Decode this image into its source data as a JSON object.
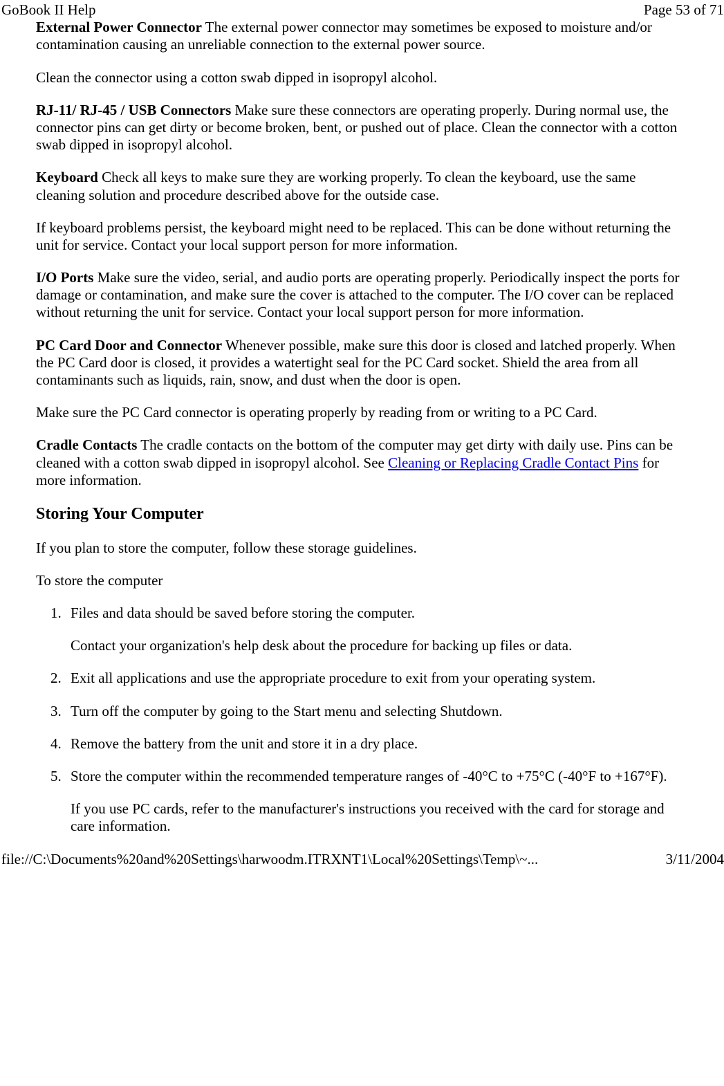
{
  "header": {
    "title": "GoBook II Help",
    "page_indicator": "Page 53 of 71"
  },
  "sections": {
    "external_power": {
      "lead": "External Power Connector",
      "body": "   The external power connector may sometimes be exposed to moisture and/or contamination causing an unreliable connection to the external power source."
    },
    "external_power_clean": "Clean the connector using a cotton swab dipped in isopropyl alcohol.",
    "rj": {
      "lead": "RJ-11/ RJ-45 / USB Connectors",
      "body": "   Make sure these connectors are operating properly. During normal use, the connector pins can get dirty or become broken, bent, or pushed out of place. Clean the connector with a cotton swab dipped in isopropyl alcohol."
    },
    "keyboard": {
      "lead": "Keyboard",
      "body": "   Check all keys to make sure they are working properly. To clean the keyboard, use the same cleaning solution and procedure described above for the outside case."
    },
    "keyboard_persist": "If keyboard problems persist, the keyboard might need to be replaced. This can be done without returning the unit for service. Contact your local support person for more information.",
    "io_ports": {
      "lead": "I/O Ports",
      "body": "   Make sure the video, serial, and audio ports are operating properly. Periodically inspect the ports for damage or contamination, and make sure the cover is attached to the computer. The I/O cover can be replaced without returning the unit for service. Contact your local support person for more information."
    },
    "pc_card": {
      "lead": "PC Card Door and Connector",
      "body": "   Whenever possible, make sure this door is closed and latched properly. When the PC Card door is closed, it provides a watertight seal for the PC Card socket. Shield the area from all contaminants such as liquids, rain, snow, and dust when the door is open."
    },
    "pc_card_check": "Make sure the PC Card connector is operating properly by reading from or writing to a PC Card.",
    "cradle": {
      "lead": "Cradle Contacts",
      "body1": "   The cradle contacts on the bottom of the computer may get dirty with daily use.  Pins can be cleaned with a cotton swab dipped in isopropyl alcohol.   See ",
      "link": "Cleaning or Replacing Cradle Contact Pins",
      "body2": " for more information."
    },
    "storing_heading": "Storing Your Computer",
    "storing_intro": "If you plan to store the computer, follow these storage guidelines.",
    "storing_sub": "To store the computer",
    "steps": {
      "s1": "Files and data should be saved before storing the computer.",
      "s1b": "Contact your organization's help desk about the procedure for backing up files or data.",
      "s2": "Exit all applications and use the appropriate procedure to exit from your operating system.",
      "s3": "Turn off the computer by going to the Start menu and selecting Shutdown.",
      "s4": "Remove the battery from the unit and store it in a dry place.",
      "s5": "Store the computer within the recommended temperature ranges of -40°C to +75°C (-40°F to +167°F).",
      "s5b": "If you use PC cards, refer to the manufacturer's instructions you received with the card for storage and care information."
    }
  },
  "footer": {
    "path": "file://C:\\Documents%20and%20Settings\\harwoodm.ITRXNT1\\Local%20Settings\\Temp\\~...",
    "date": "3/11/2004"
  }
}
